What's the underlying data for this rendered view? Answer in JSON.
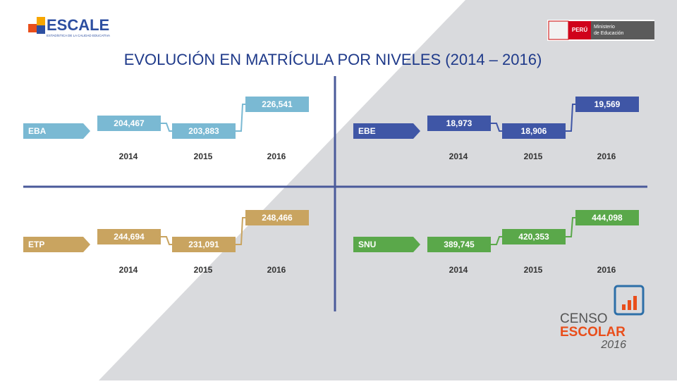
{
  "header": {
    "logo": "ESCALE",
    "logo_subtitle": "ESTADÍSTICA DE LA CALIDAD EDUCATIVA",
    "country": "PERÚ",
    "ministry_line1": "Ministerio",
    "ministry_line2": "de Educación"
  },
  "title": "EVOLUCIÓN EN MATRÍCULA POR NIVELES (2014 – 2016)",
  "panels": [
    {
      "label": "EBA",
      "color": "#7ab9d3",
      "categories": [
        "2014",
        "2015",
        "2016"
      ],
      "values": [
        204467,
        203883,
        226541
      ],
      "value_labels": [
        "204,467",
        "203,883",
        "226,541"
      ]
    },
    {
      "label": "EBE",
      "color": "#3f56a6",
      "categories": [
        "2014",
        "2015",
        "2016"
      ],
      "values": [
        18973,
        18906,
        19569
      ],
      "value_labels": [
        "18,973",
        "18,906",
        "19,569"
      ]
    },
    {
      "label": "ETP",
      "color": "#c9a460",
      "categories": [
        "2014",
        "2015",
        "2016"
      ],
      "values": [
        244694,
        231091,
        248466
      ],
      "value_labels": [
        "244,694",
        "231,091",
        "248,466"
      ]
    },
    {
      "label": "SNU",
      "color": "#5aa84a",
      "categories": [
        "2014",
        "2015",
        "2016"
      ],
      "values": [
        389745,
        420353,
        444098
      ],
      "value_labels": [
        "389,745",
        "420,353",
        "444,098"
      ]
    }
  ],
  "footer": {
    "line1": "CENSO",
    "line2": "ESCOLAR",
    "line3": "2016"
  }
}
